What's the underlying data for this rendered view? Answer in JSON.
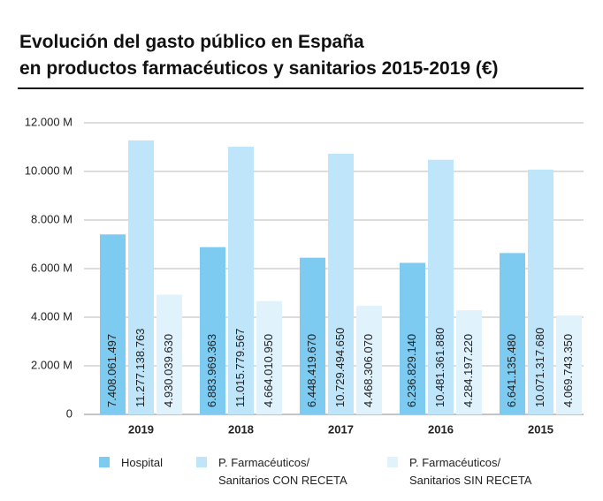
{
  "chart_data": {
    "type": "bar",
    "title": "Evolución del gasto público en España\nen productos farmacéuticos y sanitarios 2015-2019 (€)",
    "categories": [
      "2019",
      "2018",
      "2017",
      "2016",
      "2015"
    ],
    "series": [
      {
        "name": "Hospital",
        "color": "#7dcbf0",
        "values": [
          7408061497,
          6883969363,
          6448419670,
          6236829140,
          6641135480
        ],
        "value_labels": [
          "7.408.061.497",
          "6.883.969.363",
          "6.448.419.670",
          "6.236.829.140",
          "6.641.135.480"
        ]
      },
      {
        "name": "P. Farmacéuticos/\nSanitarios CON RECETA",
        "color": "#bfe5fa",
        "values": [
          11277138763,
          11015779567,
          10729494650,
          10481361880,
          10071317680
        ],
        "value_labels": [
          "11.277.138.763",
          "11.015.779.567",
          "10.729.494.650",
          "10.481.361.880",
          "10.071.317.680"
        ]
      },
      {
        "name": "P. Farmacéuticos/\nSanitarios SIN RECETA",
        "color": "#e0f2fc",
        "values": [
          4930039630,
          4664010950,
          4468306070,
          4284197220,
          4069743350
        ],
        "value_labels": [
          "4.930.039.630",
          "4.664.010.950",
          "4.468.306.070",
          "4.284.197.220",
          "4.069.743.350"
        ]
      }
    ],
    "ylim": [
      0,
      12000000000
    ],
    "yticks": [
      0,
      {
        "value": 2000000000,
        "label": "2.000 M"
      },
      {
        "value": 4000000000,
        "label": "4.000 M"
      },
      {
        "value": 6000000000,
        "label": "6.000 M"
      },
      {
        "value": 8000000000,
        "label": "8.000 M"
      },
      {
        "value": 10000000000,
        "label": "10.000 M"
      },
      {
        "value": 12000000000,
        "label": "12.000 M"
      }
    ],
    "grid": true
  }
}
